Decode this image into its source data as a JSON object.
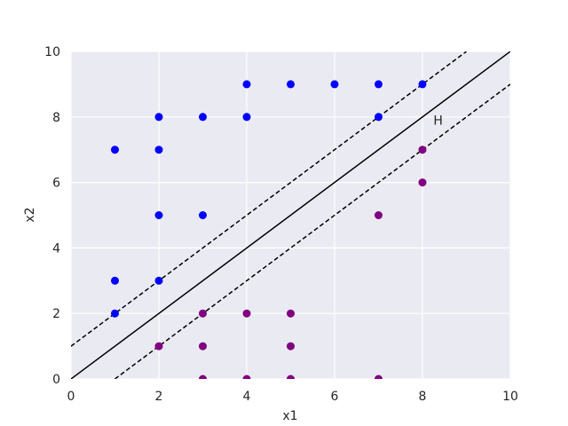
{
  "chart_data": {
    "type": "scatter",
    "xlabel": "x1",
    "ylabel": "x2",
    "xlim": [
      0,
      10
    ],
    "ylim": [
      0,
      10
    ],
    "xticks": [
      0,
      2,
      4,
      6,
      8,
      10
    ],
    "yticks": [
      0,
      2,
      4,
      6,
      8,
      10
    ],
    "grid": true,
    "series": [
      {
        "color": "#0000ff",
        "x": [
          1,
          2,
          2,
          3,
          4,
          4,
          5,
          6,
          7,
          8,
          7,
          2,
          3,
          1,
          2,
          1
        ],
        "values": [
          7,
          8,
          7,
          8,
          9,
          8,
          9,
          9,
          9,
          9,
          8,
          5,
          5,
          3,
          3,
          2
        ]
      },
      {
        "color": "#800080",
        "x": [
          2,
          3,
          3,
          3,
          4,
          4,
          5,
          5,
          5,
          7,
          7,
          8,
          8
        ],
        "values": [
          1,
          2,
          1,
          0,
          2,
          0,
          2,
          1,
          0,
          0,
          5,
          7,
          6
        ]
      }
    ],
    "lines": [
      {
        "color": "#000000",
        "dashed": false,
        "x": [
          0,
          10
        ],
        "values": [
          0,
          10
        ]
      },
      {
        "color": "#000000",
        "dashed": true,
        "x": [
          0,
          9
        ],
        "values": [
          1,
          10
        ]
      },
      {
        "color": "#000000",
        "dashed": true,
        "x": [
          1,
          10
        ],
        "values": [
          0,
          9
        ]
      }
    ],
    "annotations": [
      {
        "text": "H",
        "x": 8.25,
        "y": 7.9
      }
    ]
  }
}
